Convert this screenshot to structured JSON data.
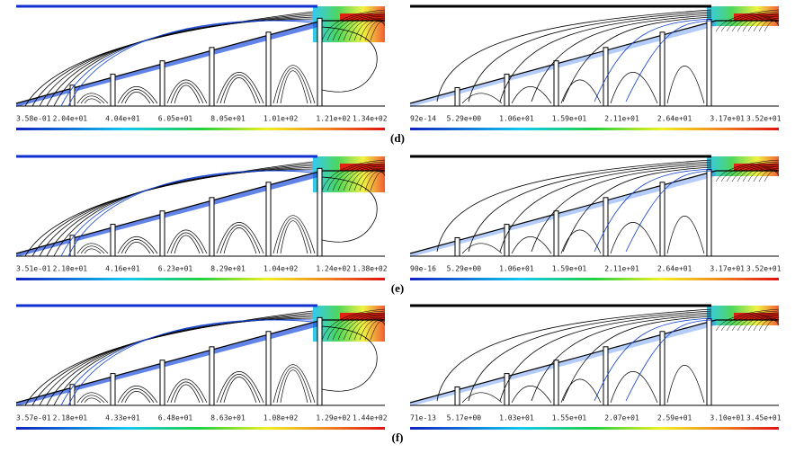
{
  "figures": [
    {
      "caption": "(d)",
      "left": {
        "labels": [
          "3.58e-01",
          "2.04e+01",
          "4.04e+01",
          "6.05e+01",
          "8.05e+01",
          "1.01e+02",
          "1.21e+02",
          "1.34e+02"
        ]
      },
      "right": {
        "labels": [
          "92e-14",
          "5.29e+00",
          "1.06e+01",
          "1.59e+01",
          "2.11e+01",
          "2.64e+01",
          "3.17e+01",
          "3.52e+01"
        ]
      }
    },
    {
      "caption": "(e)",
      "left": {
        "labels": [
          "3.51e-01",
          "2.10e+01",
          "4.16e+01",
          "6.23e+01",
          "8.29e+01",
          "1.04e+02",
          "1.24e+02",
          "1.38e+02"
        ]
      },
      "right": {
        "labels": [
          "90e-16",
          "5.29e+00",
          "1.06e+01",
          "1.59e+01",
          "2.11e+01",
          "2.64e+01",
          "3.17e+01",
          "3.52e+01"
        ]
      }
    },
    {
      "caption": "(f)",
      "left": {
        "labels": [
          "3.57e-01",
          "2.18e+01",
          "4.33e+01",
          "6.48e+01",
          "8.63e+01",
          "1.08e+02",
          "1.29e+02",
          "1.44e+02"
        ]
      },
      "right": {
        "labels": [
          "71e-13",
          "5.17e+00",
          "1.03e+01",
          "1.55e+01",
          "2.07e+01",
          "2.59e+01",
          "3.10e+01",
          "3.45e+01"
        ]
      }
    }
  ]
}
